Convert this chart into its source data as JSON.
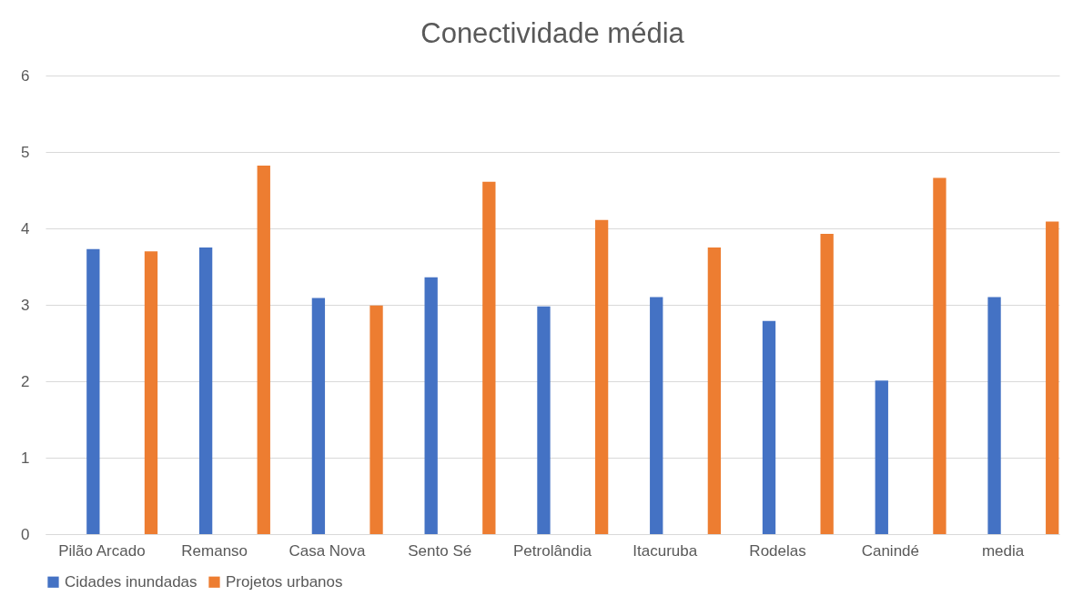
{
  "chart_data": {
    "type": "bar",
    "title": "Conectividade média",
    "categories": [
      "Pilão Arcado",
      "Remanso",
      "Casa Nova",
      "Sento Sé",
      "Petrolândia",
      "Itacuruba",
      "Rodelas",
      "Canindé",
      "media"
    ],
    "series": [
      {
        "name": "Cidades inundadas",
        "color": "#4472c4",
        "values": [
          3.73,
          3.75,
          3.09,
          3.36,
          2.98,
          3.1,
          2.79,
          2.01,
          3.1
        ]
      },
      {
        "name": "Projetos urbanos",
        "color": "#ed7d31",
        "values": [
          3.7,
          4.82,
          2.99,
          4.61,
          4.11,
          3.75,
          3.93,
          4.66,
          4.09
        ]
      }
    ],
    "ylim": [
      0,
      6
    ],
    "yticks": [
      0,
      1,
      2,
      3,
      4,
      5,
      6
    ],
    "grid": "y",
    "legend": "bottom"
  }
}
